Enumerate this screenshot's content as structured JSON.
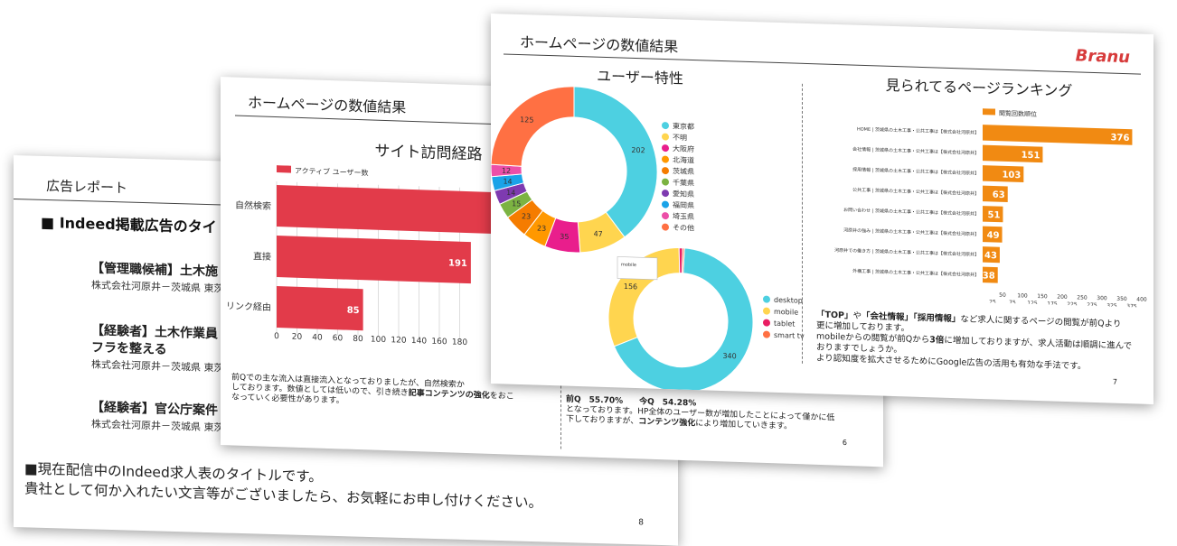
{
  "slide8": {
    "title": "広告レポート",
    "heading": "■ Indeed掲載広告のタイ",
    "jobs": [
      {
        "title": "【管理職候補】土木施",
        "company": "株式会社河原井－茨城県 東茨"
      },
      {
        "title": "【経験者】土木作業員",
        "title2": "フラを整える",
        "company": "株式会社河原井－茨城県 東茨"
      },
      {
        "title": "【経験者】官公庁案件",
        "company": "株式会社河原井－茨城県 東茨"
      }
    ],
    "footer_line1": "■現在配信中のIndeed求人表のタイトルです。",
    "footer_line2": "貴社として何か入れたい文言等がございましたら、お気軽にお申し付けください。",
    "page_no": "8"
  },
  "slide6": {
    "title": "ホームページの数値結果",
    "chart_title": "サイト訪問経路",
    "note_a": "前Qでの主な流入は直接流入となっておりましたが、自然検索か",
    "note_b": "しております。数値としては低いので、引き続き",
    "note_bold": "記事コンテンツの強化",
    "note_c": "をおこ",
    "note_d": "なっていく必要性があります。",
    "right_a": "前Q　55.70%　　今Q　54.28%",
    "right_b": "となっております。HP全体のユーザー数が増加したことによって僅かに低",
    "right_c": "下しておりますが、",
    "right_bold": "コンテンツ強化",
    "right_d": "により増加していきます。",
    "page_no": "6"
  },
  "slide7": {
    "title": "ホームページの数値結果",
    "logo": "Branu",
    "left_title": "ユーザー特性",
    "right_title": "見られてるページランキング",
    "desc1_q1": "「TOP」",
    "desc1_a": "や",
    "desc1_q2": "「会社情報」",
    "desc1_q3": "「採用情報」",
    "desc1_b": "など求人に関するページの閲覧が前Qより",
    "desc2": "更に増加しております。",
    "desc3_a": "mobileからの閲覧が前Qから",
    "desc3_bold": "3倍",
    "desc3_b": "に増加しておりますが、求人活動は順調に進んで",
    "desc4": "おりますでしょうか。",
    "desc5": "より認知度を拡大させるためにGoogle広告の活用も有効な手法です。",
    "page_no": "7",
    "tooltip": "mobile"
  },
  "colors": {
    "bar_red": "#e23b4a",
    "bar_orange": "#f18a12",
    "desktop": "#4dd0e1"
  },
  "chart_data": [
    {
      "type": "bar",
      "orientation": "horizontal",
      "title": "サイト訪問経路",
      "legend": "アクティブ ユーザー数",
      "categories": [
        "自然検索",
        "直接",
        "リンク経由"
      ],
      "values": [
        null,
        191,
        85
      ],
      "xticks": [
        "0",
        "20",
        "40",
        "60",
        "80",
        "100",
        "120",
        "140",
        "160",
        "180"
      ],
      "grid": true
    },
    {
      "type": "pie",
      "title": "ユーザー特性",
      "labels": [
        "東京都",
        "不明",
        "大阪府",
        "北海道",
        "茨城県",
        "千葉県",
        "愛知県",
        "福岡県",
        "埼玉県",
        "その他"
      ],
      "slice_labels": [
        "202",
        "47",
        "35",
        "23",
        "23",
        "15",
        "14",
        "14",
        "12",
        "125"
      ],
      "values": [
        202,
        47,
        35,
        23,
        23,
        15,
        14,
        14,
        12,
        125
      ],
      "colors": [
        "#4dd0e1",
        "#ffd54f",
        "#e91e8c",
        "#ff9800",
        "#f57c00",
        "#7cb342",
        "#7e3ab0",
        "#1aa3e8",
        "#ec4fa8",
        "#ff7043"
      ]
    },
    {
      "type": "pie",
      "labels": [
        "desktop",
        "mobile",
        "tablet",
        "smart tv"
      ],
      "slice_labels": [
        "340",
        "156",
        "",
        ""
      ],
      "values": [
        340,
        156,
        4,
        2
      ],
      "colors": [
        "#4dd0e1",
        "#ffd54f",
        "#e91e63",
        "#ff7043"
      ]
    },
    {
      "type": "bar",
      "orientation": "horizontal",
      "title": "見られてるページランキング",
      "legend": "閲覧回数順位",
      "categories": [
        "HOME | 茨城県の土木工事・公共工事は【株式会社河原井】",
        "会社情報 | 茨城県の土木工事・公共工事は【株式会社河原井】",
        "採用情報 | 茨城県の土木工事・公共工事は【株式会社河原井】",
        "公共工事 | 茨城県の土木工事・公共工事は【株式会社河原井】",
        "お問い合わせ | 茨城県の土木工事・公共工事は【株式会社河原井】",
        "河原井の強み | 茨城県の土木工事・公共工事は【株式会社河原井】",
        "河原井での働き方 | 茨城県の土木工事・公共工事は【株式会社河原井】",
        "外構工事 | 茨城県の土木工事・公共工事は【株式会社河原井】"
      ],
      "values": [
        376,
        151,
        103,
        63,
        51,
        49,
        43,
        38
      ],
      "xticks": [
        "25",
        "50",
        "75",
        "100",
        "125",
        "150",
        "175",
        "200",
        "225",
        "250",
        "275",
        "300",
        "325",
        "350",
        "375",
        "400"
      ],
      "xlim": [
        0,
        400
      ]
    }
  ]
}
